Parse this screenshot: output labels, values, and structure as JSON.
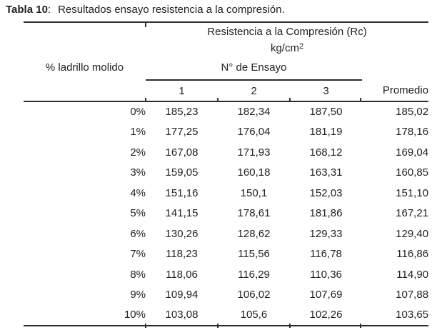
{
  "caption": {
    "label": "Tabla 10",
    "separator": ":",
    "text": "Resultados ensayo resistencia a la compresión."
  },
  "table": {
    "group_header": "Resistencia a la Compresión (Rc)",
    "unit": {
      "base": "kg/cm",
      "exponent": "2"
    },
    "percent_header": "% ladrillo molido",
    "ensayo_header": "N° de Ensayo",
    "ensayo_columns": [
      "1",
      "2",
      "3"
    ],
    "promedio_header": "Promedio",
    "rows": [
      {
        "percent": "0%",
        "v1": "185,23",
        "v2": "182,34",
        "v3": "187,50",
        "prom": "185,02"
      },
      {
        "percent": "1%",
        "v1": "177,25",
        "v2": "176,04",
        "v3": "181,19",
        "prom": "178,16"
      },
      {
        "percent": "2%",
        "v1": "167,08",
        "v2": "171,93",
        "v3": "168,12",
        "prom": "169,04"
      },
      {
        "percent": "3%",
        "v1": "159,05",
        "v2": "160,18",
        "v3": "163,31",
        "prom": "160,85"
      },
      {
        "percent": "4%",
        "v1": "151,16",
        "v2": "150,1",
        "v3": "152,03",
        "prom": "151,10"
      },
      {
        "percent": "5%",
        "v1": "141,15",
        "v2": "178,61",
        "v3": "181,86",
        "prom": "167,21"
      },
      {
        "percent": "6%",
        "v1": "130,26",
        "v2": "128,62",
        "v3": "129,33",
        "prom": "129,40"
      },
      {
        "percent": "7%",
        "v1": "118,23",
        "v2": "115,56",
        "v3": "116,78",
        "prom": "116,86"
      },
      {
        "percent": "8%",
        "v1": "118,06",
        "v2": "116,29",
        "v3": "110,36",
        "prom": "114,90"
      },
      {
        "percent": "9%",
        "v1": "109,94",
        "v2": "106,02",
        "v3": "107,69",
        "prom": "107,88"
      },
      {
        "percent": "10%",
        "v1": "103,08",
        "v2": "105,6",
        "v3": "102,26",
        "prom": "103,65"
      }
    ]
  },
  "colors": {
    "ink": "#222222",
    "rule": "#2e2e2e",
    "background": "#ffffff"
  }
}
